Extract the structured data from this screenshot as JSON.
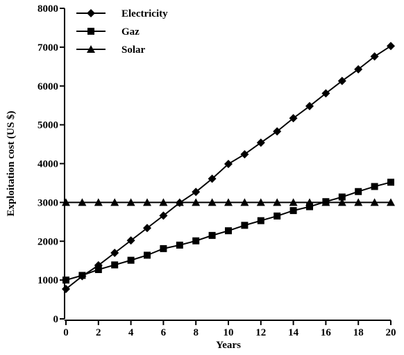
{
  "chart_data": {
    "type": "line",
    "xlabel": "Years",
    "ylabel": "Exploitation cost (US $)",
    "x": [
      0,
      1,
      2,
      3,
      4,
      5,
      6,
      7,
      8,
      9,
      10,
      11,
      12,
      13,
      14,
      15,
      16,
      17,
      18,
      19,
      20
    ],
    "series": [
      {
        "name": "Electricity",
        "color": "#000000",
        "marker": "diamond",
        "values": [
          770,
          1100,
          1380,
          1700,
          2020,
          2340,
          2660,
          2990,
          3270,
          3610,
          3990,
          4240,
          4540,
          4830,
          5170,
          5480,
          5810,
          6130,
          6430,
          6760,
          7030
        ]
      },
      {
        "name": "Gaz",
        "color": "#000000",
        "marker": "square",
        "values": [
          1000,
          1120,
          1270,
          1390,
          1510,
          1640,
          1810,
          1900,
          2010,
          2150,
          2270,
          2410,
          2530,
          2650,
          2790,
          2890,
          3020,
          3140,
          3280,
          3410,
          3520
        ]
      },
      {
        "name": "Solar",
        "color": "#000000",
        "marker": "triangle",
        "values": [
          3000,
          3000,
          3000,
          3000,
          3000,
          3000,
          3000,
          3000,
          3000,
          3000,
          3000,
          3000,
          3000,
          3000,
          3000,
          3000,
          3000,
          3000,
          3000,
          3000,
          3000
        ]
      }
    ],
    "xlim": [
      0,
      20
    ],
    "xticks": [
      0,
      2,
      4,
      6,
      8,
      10,
      12,
      14,
      16,
      18,
      20
    ],
    "ylim": [
      0,
      8000
    ],
    "yticks": [
      0,
      1000,
      2000,
      3000,
      4000,
      5000,
      6000,
      7000,
      8000
    ],
    "legend": "upper-left"
  }
}
